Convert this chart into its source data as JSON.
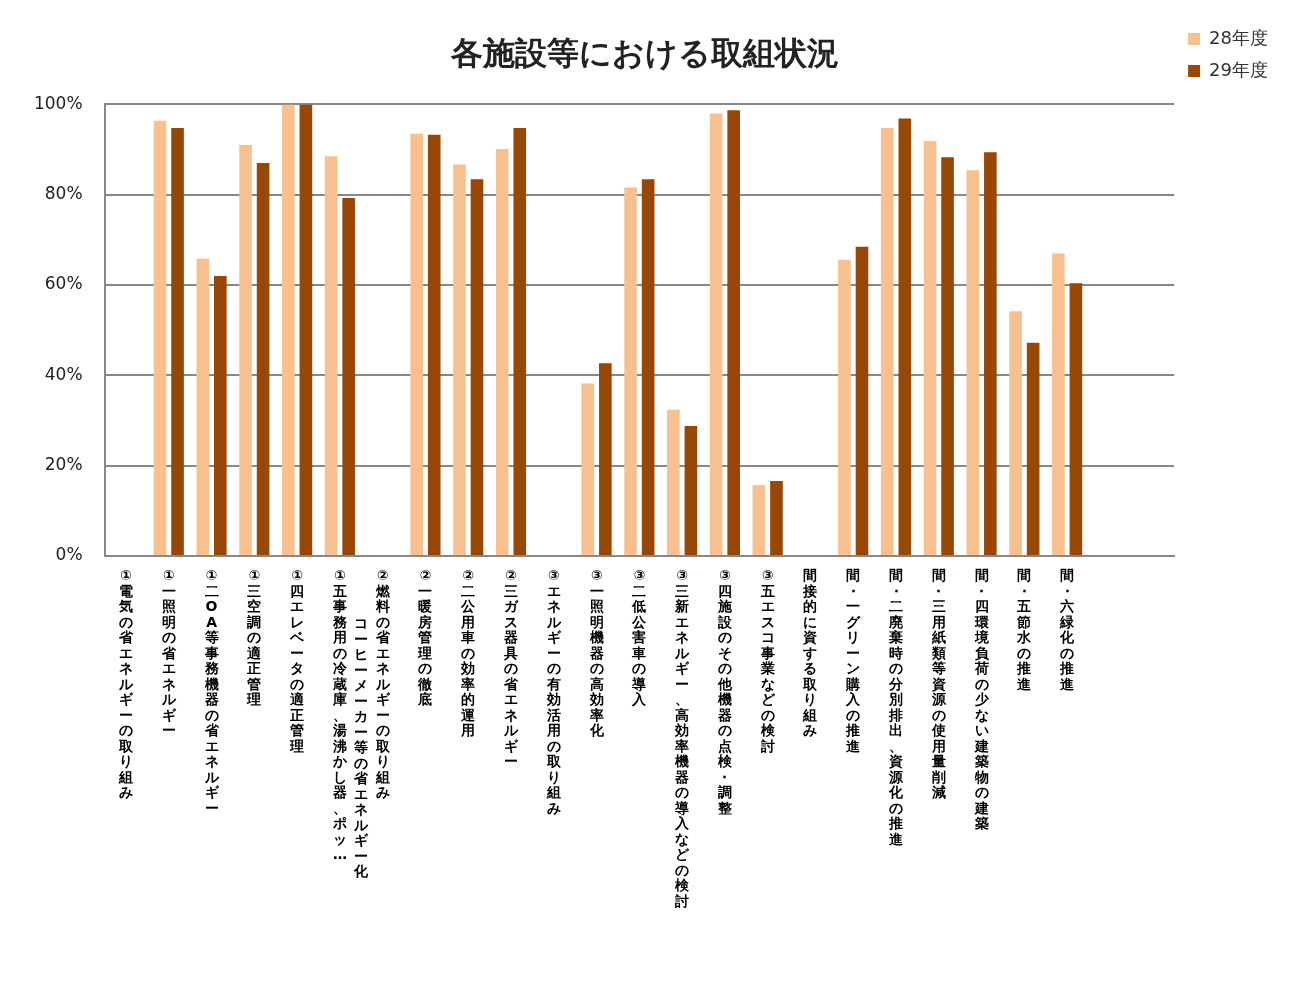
{
  "chart_data": {
    "type": "bar",
    "title": "各施設等における取組状況",
    "categories": [
      "①電気の省エネルギーの取り組み",
      "①一照明の省エネルギー",
      "①二OA等事務機器の省エネルギー",
      "①三空調の適正管理",
      "①四エレベータの適正管理",
      "①五事務用の冷蔵庫、湯沸かし器、ポッ…",
      "②燃料の省エネルギーの取り組み",
      "②一暖房管理の徹底",
      "②二公用車の効率的運用",
      "②三ガス器具の省エネルギー",
      "③エネルギーの有効活用の取り組み",
      "③一照明機器の高効率化",
      "③二低公害車の導入",
      "③三新エネルギー、高効率機器の導入などの検討",
      "③四施設のその他機器の点検･調整",
      "③五エスコ事業などの検討",
      "間接的に資する取り組み",
      "間･一グリーン購入の推進",
      "間･二廃棄時の分別排出、資源化の推進",
      "間･三用紙類等資源の使用量削減",
      "間･四環境負荷の少ない建築物の建築",
      "間･五節水の推進",
      "間･六緑化の推進",
      null,
      null
    ],
    "series": [
      {
        "name": "28年度",
        "color": "#f9c08f",
        "values": [
          null,
          96.4,
          65.8,
          91,
          100,
          88.5,
          null,
          93.5,
          86.7,
          90.1,
          null,
          38.2,
          81.6,
          32.4,
          98,
          15.7,
          null,
          65.6,
          94.8,
          91.9,
          85.4,
          54.2,
          67,
          null,
          null
        ]
      },
      {
        "name": "29年度",
        "color": "#974706",
        "values": [
          null,
          94.8,
          62,
          87,
          100,
          79.3,
          null,
          93.3,
          83.4,
          94.8,
          null,
          42.7,
          83.4,
          28.8,
          98.7,
          16.6,
          null,
          68.5,
          96.9,
          88.3,
          89.4,
          47.2,
          60.4,
          null,
          null
        ]
      }
    ],
    "ylim": [
      0,
      100
    ],
    "yticks": [
      {
        "value": 0,
        "label": "0%"
      },
      {
        "value": 20,
        "label": "20%"
      },
      {
        "value": 40,
        "label": "40%"
      },
      {
        "value": 60,
        "label": "60%"
      },
      {
        "value": 80,
        "label": "80%"
      },
      {
        "value": 100,
        "label": "100%"
      }
    ],
    "annotations": [
      "コーヒーメーカー等の省エネルギー化"
    ],
    "grid": "y",
    "legend": "top right"
  }
}
